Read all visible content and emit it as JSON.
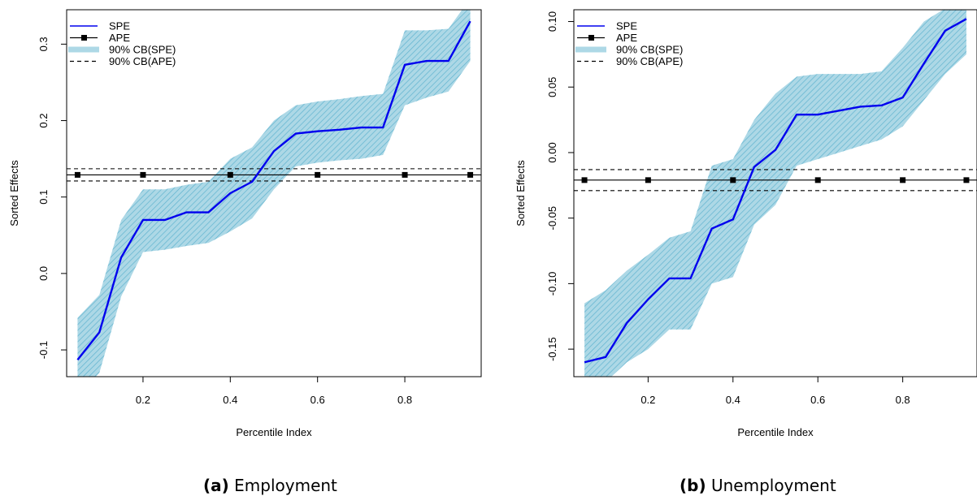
{
  "figure": {
    "panels": [
      {
        "caption_tag": "(a)",
        "caption_text": "Employment"
      },
      {
        "caption_tag": "(b)",
        "caption_text": "Unemployment"
      }
    ]
  },
  "colors": {
    "spe_line": "#0000ee",
    "band_fill": "#add8e6",
    "band_hatch": "#5fb3cf",
    "ape": "#000000"
  },
  "chart_data": [
    {
      "type": "line",
      "title": "",
      "xlabel": "Percentile Index",
      "ylabel": "Sorted Effects",
      "xlim": [
        0.025,
        0.975
      ],
      "ylim": [
        -0.135,
        0.345
      ],
      "xticks": [
        0.2,
        0.4,
        0.6,
        0.8
      ],
      "xtick_labels": [
        "0.2",
        "0.4",
        "0.6",
        "0.8"
      ],
      "yticks": [
        -0.1,
        0.0,
        0.1,
        0.2,
        0.3
      ],
      "ytick_labels": [
        "-0.1",
        "0.0",
        "0.1",
        "0.2",
        "0.3"
      ],
      "grid": false,
      "legend_position": "top-left",
      "legend": [
        "SPE",
        "APE",
        "90% CB(SPE)",
        "90% CB(APE)"
      ],
      "x": [
        0.05,
        0.1,
        0.15,
        0.2,
        0.25,
        0.3,
        0.35,
        0.4,
        0.45,
        0.5,
        0.55,
        0.6,
        0.65,
        0.7,
        0.75,
        0.8,
        0.85,
        0.9,
        0.95
      ],
      "spe": [
        -0.113,
        -0.077,
        0.021,
        0.07,
        0.07,
        0.08,
        0.08,
        0.105,
        0.12,
        0.16,
        0.183,
        0.186,
        0.188,
        0.191,
        0.191,
        0.273,
        0.278,
        0.278,
        0.33
      ],
      "spe_lower": [
        -0.16,
        -0.13,
        -0.03,
        0.028,
        0.031,
        0.036,
        0.04,
        0.055,
        0.072,
        0.11,
        0.14,
        0.145,
        0.148,
        0.15,
        0.155,
        0.22,
        0.23,
        0.238,
        0.278
      ],
      "spe_upper": [
        -0.058,
        -0.028,
        0.07,
        0.11,
        0.11,
        0.116,
        0.12,
        0.15,
        0.165,
        0.2,
        0.22,
        0.225,
        0.228,
        0.232,
        0.235,
        0.318,
        0.318,
        0.32,
        0.36
      ],
      "ape_x": [
        0.05,
        0.2,
        0.4,
        0.6,
        0.8,
        0.95
      ],
      "ape": 0.129,
      "ape_lower": 0.121,
      "ape_upper": 0.137
    },
    {
      "type": "line",
      "title": "",
      "xlabel": "Percentile Index",
      "ylabel": "Sorted Effects",
      "xlim": [
        0.025,
        0.975
      ],
      "ylim": [
        -0.171,
        0.109
      ],
      "xticks": [
        0.2,
        0.4,
        0.6,
        0.8
      ],
      "xtick_labels": [
        "0.2",
        "0.4",
        "0.6",
        "0.8"
      ],
      "yticks": [
        -0.15,
        -0.1,
        -0.05,
        0.0,
        0.05,
        0.1
      ],
      "ytick_labels": [
        "-0.15",
        "-0.10",
        "-0.05",
        "0.00",
        "0.05",
        "0.10"
      ],
      "grid": false,
      "legend_position": "top-left",
      "legend": [
        "SPE",
        "APE",
        "90% CB(SPE)",
        "90% CB(APE)"
      ],
      "x": [
        0.05,
        0.1,
        0.15,
        0.2,
        0.25,
        0.3,
        0.35,
        0.4,
        0.45,
        0.5,
        0.55,
        0.6,
        0.65,
        0.7,
        0.75,
        0.8,
        0.85,
        0.9,
        0.95
      ],
      "spe": [
        -0.16,
        -0.156,
        -0.13,
        -0.112,
        -0.096,
        -0.096,
        -0.058,
        -0.051,
        -0.011,
        0.002,
        0.029,
        0.029,
        0.032,
        0.035,
        0.036,
        0.042,
        0.068,
        0.093,
        0.102
      ],
      "spe_lower": [
        -0.175,
        -0.175,
        -0.16,
        -0.15,
        -0.135,
        -0.135,
        -0.1,
        -0.095,
        -0.055,
        -0.04,
        -0.01,
        -0.005,
        0.0,
        0.005,
        0.01,
        0.02,
        0.04,
        0.06,
        0.075
      ],
      "spe_upper": [
        -0.115,
        -0.105,
        -0.09,
        -0.078,
        -0.065,
        -0.06,
        -0.01,
        -0.005,
        0.025,
        0.045,
        0.058,
        0.06,
        0.06,
        0.06,
        0.062,
        0.08,
        0.1,
        0.11,
        0.115
      ],
      "ape_x": [
        0.05,
        0.2,
        0.4,
        0.6,
        0.8,
        0.95
      ],
      "ape": -0.021,
      "ape_lower": -0.029,
      "ape_upper": -0.013
    }
  ]
}
